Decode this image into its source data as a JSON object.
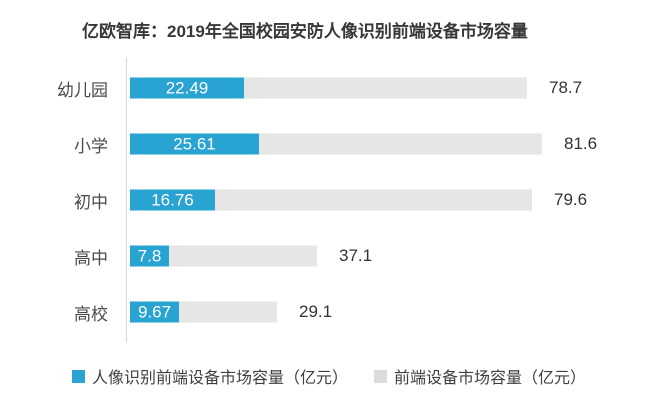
{
  "title": "亿欧智库：2019年全国校园安防人像识别前端设备市场容量",
  "colors": {
    "series1_blue": "#29A3D2",
    "series2_gray": "#E6E6E6",
    "legend_gray_swatch": "#DCDCDC",
    "axis_line": "#D9D9D9",
    "title_text": "#383838",
    "category_text": "#4A4A4A",
    "value_text": "#333333",
    "inside_value_text": "#FFFFFF",
    "background": "#FFFFFF"
  },
  "legend": {
    "items": [
      {
        "label": "人像识别前端设备市场容量（亿元）",
        "color": "#29A3D2"
      },
      {
        "label": "前端设备市场容量（亿元）",
        "color": "#DCDCDC"
      }
    ]
  },
  "chart_data": {
    "type": "bar",
    "orientation": "horizontal",
    "title": "亿欧智库：2019年全国校园安防人像识别前端设备市场容量",
    "categories": [
      "幼儿园",
      "小学",
      "初中",
      "高中",
      "高校"
    ],
    "series": [
      {
        "name": "人像识别前端设备市场容量（亿元）",
        "color": "#29A3D2",
        "values": [
          22.49,
          25.61,
          16.76,
          7.8,
          9.67
        ],
        "value_labels": [
          "22.49",
          "25.61",
          "16.76",
          "7.8",
          "9.67"
        ],
        "label_position": "inside"
      },
      {
        "name": "前端设备市场容量（亿元）",
        "color": "#E6E6E6",
        "values": [
          78.7,
          81.6,
          79.6,
          37.1,
          29.1
        ],
        "value_labels": [
          "78.7",
          "81.6",
          "79.6",
          "37.1",
          "29.1"
        ],
        "label_position": "outside"
      }
    ],
    "xlabel": "",
    "ylabel": "",
    "xlim": [
      0,
      85
    ],
    "grid": false,
    "legend_position": "bottom"
  }
}
